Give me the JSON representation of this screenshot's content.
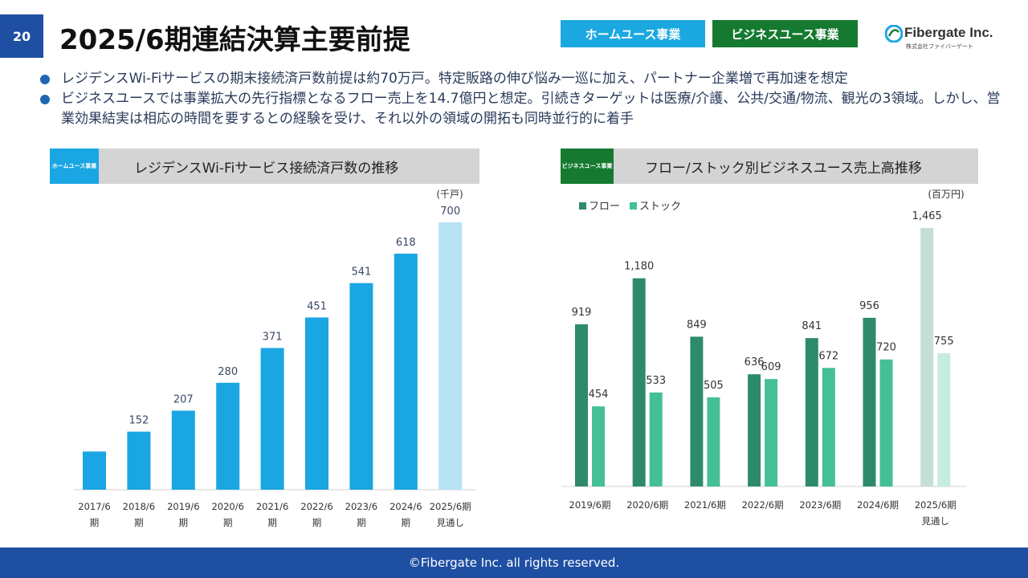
{
  "page_number": "20",
  "title": "2025/6期連結決算主要前提",
  "tags": {
    "home": "ホームユース事業",
    "business": "ビジネスユース事業"
  },
  "logo": {
    "name": "Fibergate Inc.",
    "sub": "株式会社ファイバーゲート"
  },
  "bullets": [
    "レジデンスWi-Fiサービスの期末接続済戸数前提は約70万戸。特定販路の伸び悩み一巡に加え、パートナー企業増で再加速を想定",
    "ビジネスユースでは事業拡大の先行指標となるフロー売上を14.7億円と想定。引続きターゲットは医療/介護、公共/交通/物流、観光の3領域。しかし、営業効果結実は相応の時間を要するとの経験を受け、それ以外の領域の開拓も同時並行的に着手"
  ],
  "left_panel": {
    "tag": "ホームユース事業",
    "title": "レジデンスWi-Fiサービス接続済戸数の推移"
  },
  "right_panel": {
    "tag": "ビジネスユース事業",
    "title": "フロー/ストック別ビジネスユース売上高推移"
  },
  "colors": {
    "home_bar": "#1aa6e3",
    "home_forecast": "#b8e2f5",
    "flow_bar": "#2e8b6a",
    "stock_bar": "#45bf98",
    "flow_forecast": "#c4e0d6",
    "stock_forecast": "#c6ecdf"
  },
  "chart_data": [
    {
      "type": "bar",
      "unit": "(千戸)",
      "categories": [
        "2017/6\n期",
        "2018/6\n期",
        "2019/6\n期",
        "2020/6\n期",
        "2021/6\n期",
        "2022/6\n期",
        "2023/6\n期",
        "2024/6\n期",
        "2025/6期\n見通し"
      ],
      "values": [
        null,
        152,
        207,
        280,
        371,
        451,
        541,
        618,
        700
      ],
      "approx_values": [
        100,
        152,
        207,
        280,
        371,
        451,
        541,
        618,
        700
      ],
      "labels": [
        "",
        "152",
        "207",
        "280",
        "371",
        "451",
        "541",
        "618",
        "700"
      ],
      "ylim": [
        0,
        700
      ],
      "forecast_index": 8
    },
    {
      "type": "bar",
      "unit": "(百万円)",
      "categories": [
        "2019/6期",
        "2020/6期",
        "2021/6期",
        "2022/6期",
        "2023/6期",
        "2024/6期",
        "2025/6期\n見通し"
      ],
      "series": [
        {
          "name": "フロー",
          "values": [
            919,
            1180,
            849,
            636,
            841,
            956,
            1465
          ],
          "labels": [
            "919",
            "1,180",
            "849",
            "636",
            "841",
            "956",
            "1,465"
          ]
        },
        {
          "name": "ストック",
          "values": [
            454,
            533,
            505,
            609,
            672,
            720,
            755
          ],
          "labels": [
            "454",
            "533",
            "505",
            "609",
            "672",
            "720",
            "755"
          ]
        }
      ],
      "ylim": [
        0,
        1465
      ],
      "legend": "top-left",
      "forecast_index": 6
    }
  ],
  "footer": "©Fibergate Inc. all rights reserved."
}
